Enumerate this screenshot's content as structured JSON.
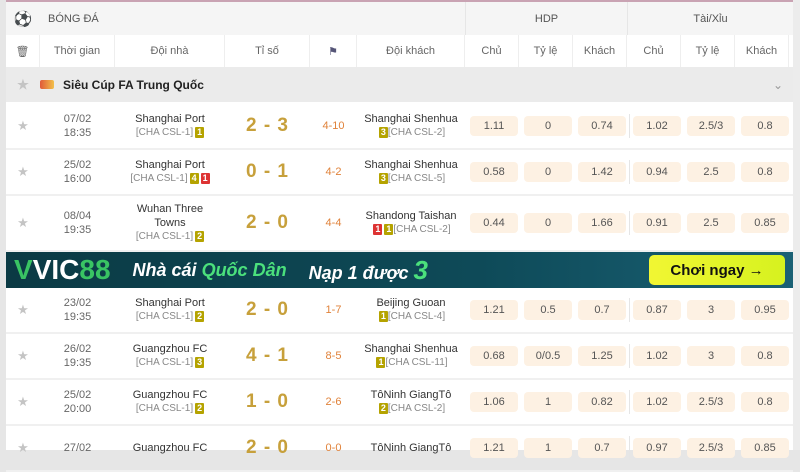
{
  "header": {
    "sport": "BÓNG ĐÁ",
    "hdp": "HDP",
    "taixiu": "Tài/Xỉu"
  },
  "columns": {
    "time": "Thời gian",
    "home": "Đội nhà",
    "score": "Tỉ số",
    "away": "Đội khách",
    "hdp_home": "Chủ",
    "hdp_rate": "Tỷ lệ",
    "hdp_away": "Khách",
    "tx_home": "Chủ",
    "tx_rate": "Tỷ lệ",
    "tx_away": "Khách"
  },
  "league": {
    "name": "Siêu Cúp FA Trung Quốc"
  },
  "banner": {
    "brand_a": "VIC",
    "brand_b": "88",
    "slogan_a": "Nhà cái ",
    "slogan_b": "Quốc Dân",
    "offer": "Nạp 1 được ",
    "offer_num": "3",
    "cta": "Chơi ngay →"
  },
  "matches": [
    {
      "date": "07/02",
      "time": "18:35",
      "home": "Shanghai Port",
      "home_rank": "[CHA CSL-1]",
      "home_badges": [
        [
          "1",
          "y"
        ]
      ],
      "score": "2 - 3",
      "corner": "4-10",
      "away": "Shanghai Shenhua",
      "away_rank": "[CHA CSL-2]",
      "away_badges": [
        [
          "3",
          "y"
        ]
      ],
      "odds": [
        "1.11",
        "0",
        "0.74",
        "1.02",
        "2.5/3",
        "0.8"
      ]
    },
    {
      "date": "25/02",
      "time": "16:00",
      "home": "Shanghai Port",
      "home_rank": "[CHA CSL-1]",
      "home_badges": [
        [
          "4",
          "y"
        ],
        [
          "1",
          "r"
        ]
      ],
      "score": "0 - 1",
      "corner": "4-2",
      "away": "Shanghai Shenhua",
      "away_rank": "[CHA CSL-5]",
      "away_badges": [
        [
          "3",
          "y"
        ]
      ],
      "odds": [
        "0.58",
        "0",
        "1.42",
        "0.94",
        "2.5",
        "0.8"
      ]
    },
    {
      "date": "08/04",
      "time": "19:35",
      "home": "Wuhan Three Towns",
      "home_rank": "[CHA CSL-1]",
      "home_badges": [
        [
          "2",
          "y"
        ]
      ],
      "score": "2 - 0",
      "corner": "4-4",
      "away": "Shandong Taishan",
      "away_rank": "[CHA CSL-2]",
      "away_badges": [
        [
          "1",
          "r"
        ],
        [
          "1",
          "y"
        ]
      ],
      "odds": [
        "0.44",
        "0",
        "1.66",
        "0.91",
        "2.5",
        "0.85"
      ]
    },
    {
      "date": "23/02",
      "time": "19:35",
      "home": "Shanghai Port",
      "home_rank": "[CHA CSL-1]",
      "home_badges": [
        [
          "2",
          "y"
        ]
      ],
      "score": "2 - 0",
      "corner": "1-7",
      "away": "Beijing Guoan",
      "away_rank": "[CHA CSL-4]",
      "away_badges": [
        [
          "1",
          "y"
        ]
      ],
      "odds": [
        "1.21",
        "0.5",
        "0.7",
        "0.87",
        "3",
        "0.95"
      ]
    },
    {
      "date": "26/02",
      "time": "19:35",
      "home": "Guangzhou FC",
      "home_rank": "[CHA CSL-1]",
      "home_badges": [
        [
          "3",
          "y"
        ]
      ],
      "score": "4 - 1",
      "corner": "8-5",
      "away": "Shanghai Shenhua",
      "away_rank": "[CHA CSL-11]",
      "away_badges": [
        [
          "1",
          "y"
        ]
      ],
      "odds": [
        "0.68",
        "0/0.5",
        "1.25",
        "1.02",
        "3",
        "0.8"
      ]
    },
    {
      "date": "25/02",
      "time": "20:00",
      "home": "Guangzhou FC",
      "home_rank": "[CHA CSL-1]",
      "home_badges": [
        [
          "2",
          "y"
        ]
      ],
      "score": "1 - 0",
      "corner": "2-6",
      "away": "TôNinh GiangTô",
      "away_rank": "[CHA CSL-2]",
      "away_badges": [
        [
          "2",
          "y"
        ]
      ],
      "odds": [
        "1.06",
        "1",
        "0.82",
        "1.02",
        "2.5/3",
        "0.8"
      ]
    },
    {
      "date": "27/02",
      "time": "",
      "home": "Guangzhou FC",
      "home_rank": "",
      "home_badges": [],
      "score": "2 - 0",
      "corner": "0-0",
      "away": "TôNinh GiangTô",
      "away_rank": "",
      "away_badges": [],
      "odds": [
        "1.21",
        "1",
        "0.7",
        "0.97",
        "2.5/3",
        "0.85"
      ]
    }
  ]
}
